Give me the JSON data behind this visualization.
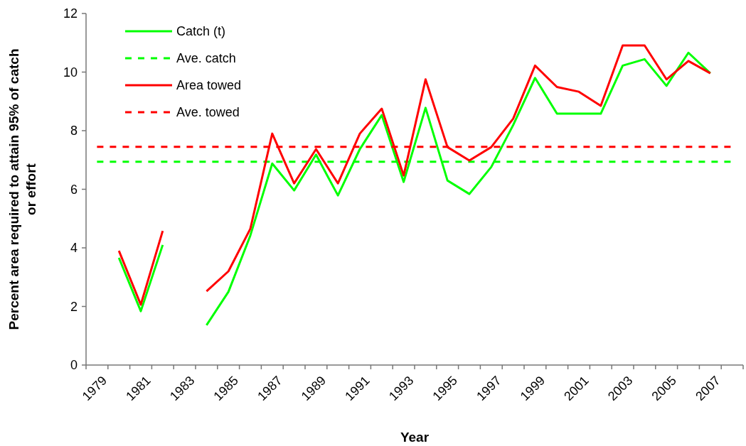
{
  "chart_data": {
    "type": "line",
    "xlabel": "Year",
    "ylabel": "Percent area required to attain 95% of catch or effort",
    "categories": [
      "1979",
      null,
      "1981",
      null,
      "1983",
      null,
      "1985",
      null,
      "1987",
      null,
      "1989",
      null,
      "1991",
      null,
      "1993",
      null,
      "1995",
      null,
      "1997",
      null,
      "1999",
      null,
      "2001",
      null,
      "2003",
      null,
      "2005",
      null,
      "2007",
      null
    ],
    "series": [
      {
        "name": "Catch (t)",
        "color": "#00ff00",
        "line_style": "solid",
        "values": [
          null,
          3.66,
          1.84,
          4.1,
          null,
          1.36,
          2.5,
          4.42,
          6.88,
          5.96,
          7.18,
          5.79,
          7.37,
          8.53,
          6.25,
          8.78,
          6.3,
          5.84,
          6.76,
          8.19,
          9.8,
          8.58,
          8.58,
          8.58,
          10.22,
          10.44,
          9.53,
          10.66,
          9.96,
          null
        ]
      },
      {
        "name": "Ave. catch",
        "color": "#00ff00",
        "line_style": "dashed",
        "values": [
          6.94,
          6.94,
          6.94,
          6.94,
          6.94,
          6.94,
          6.94,
          6.94,
          6.94,
          6.94,
          6.94,
          6.94,
          6.94,
          6.94,
          6.94,
          6.94,
          6.94,
          6.94,
          6.94,
          6.94,
          6.94,
          6.94,
          6.94,
          6.94,
          6.94,
          6.94,
          6.94,
          6.94,
          6.94,
          6.94
        ]
      },
      {
        "name": "Area towed",
        "color": "#ff0000",
        "line_style": "solid",
        "values": [
          null,
          3.9,
          2.06,
          4.58,
          null,
          2.52,
          3.2,
          4.65,
          7.9,
          6.2,
          7.37,
          6.2,
          7.9,
          8.75,
          6.47,
          9.75,
          7.44,
          6.98,
          7.44,
          8.41,
          10.22,
          9.49,
          9.33,
          8.85,
          10.91,
          10.91,
          9.75,
          10.38,
          9.96,
          null
        ]
      },
      {
        "name": "Ave. towed",
        "color": "#ff0000",
        "line_style": "dashed",
        "values": [
          7.45,
          7.45,
          7.45,
          7.45,
          7.45,
          7.45,
          7.45,
          7.45,
          7.45,
          7.45,
          7.45,
          7.45,
          7.45,
          7.45,
          7.45,
          7.45,
          7.45,
          7.45,
          7.45,
          7.45,
          7.45,
          7.45,
          7.45,
          7.45,
          7.45,
          7.45,
          7.45,
          7.45,
          7.45,
          7.45
        ]
      }
    ],
    "ylim": [
      0,
      12
    ],
    "yticks": [
      0,
      2,
      4,
      6,
      8,
      10,
      12
    ],
    "grid": false,
    "legend": "top left",
    "marker": "none"
  }
}
